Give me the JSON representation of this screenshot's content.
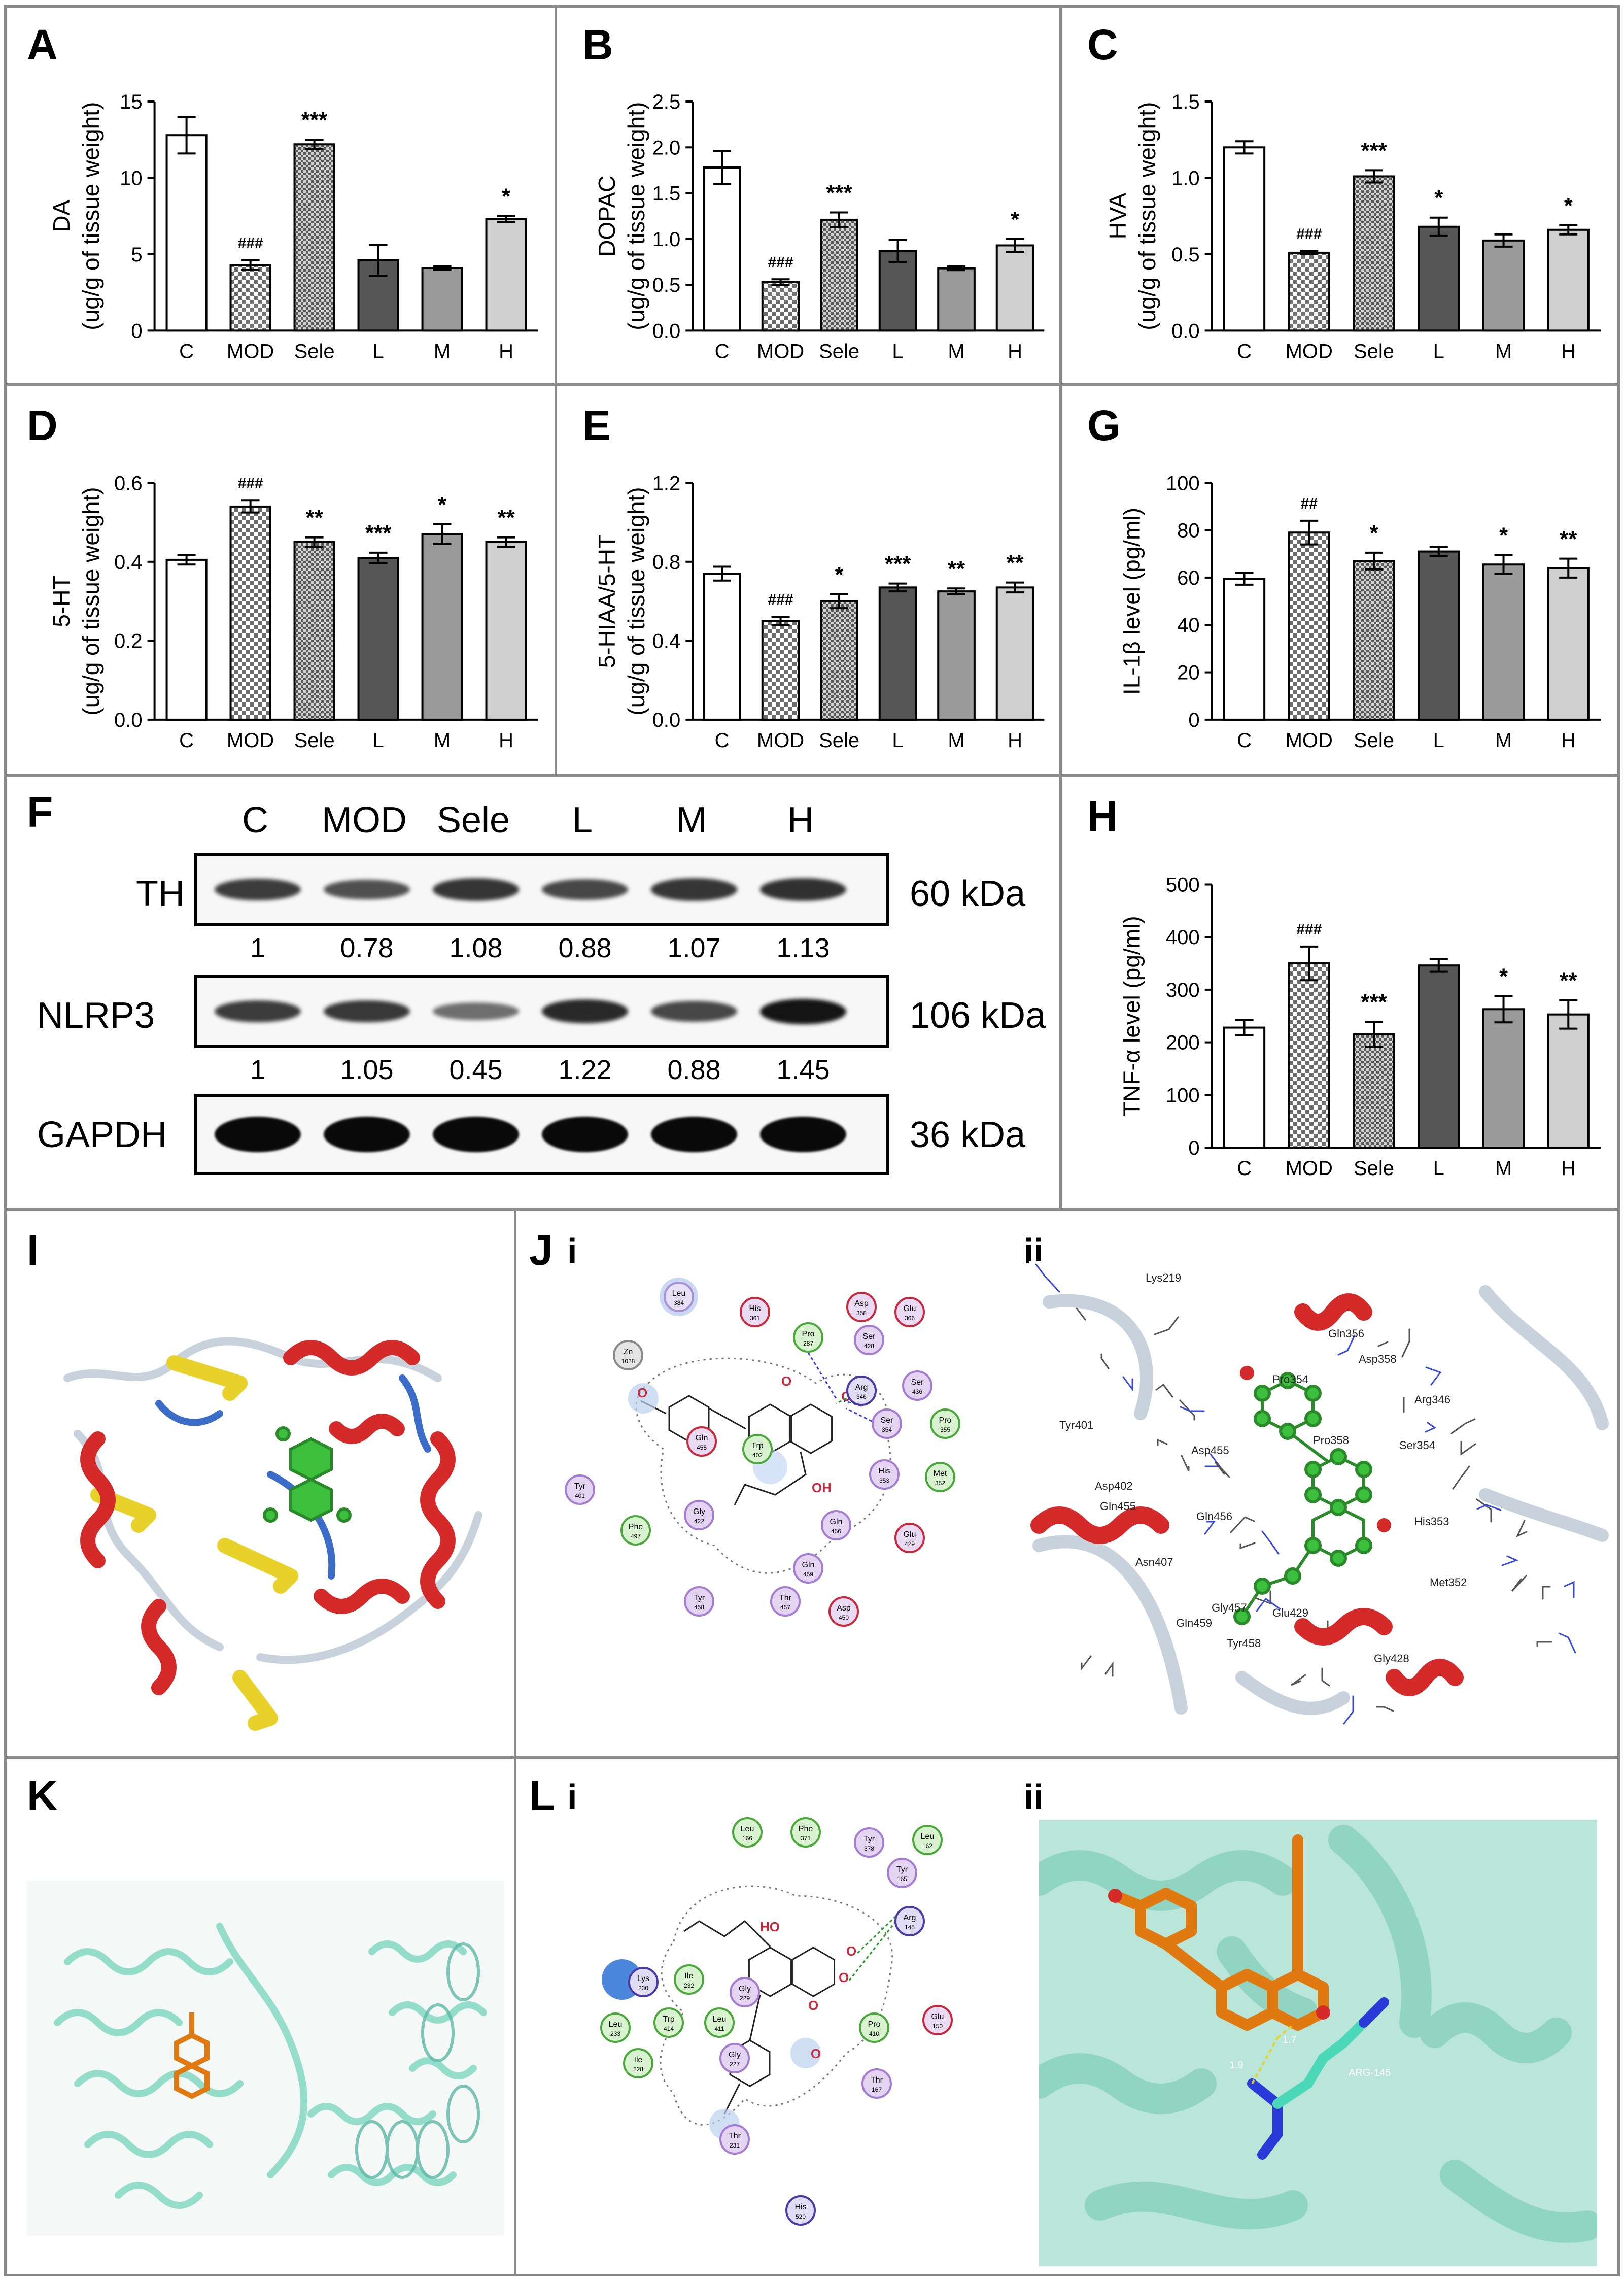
{
  "colors": {
    "C": "#ffffff",
    "MOD": "checker",
    "Sele": "checker-dense",
    "L": "#555555",
    "M": "#9a9a9a",
    "H": "#cfcfcf",
    "helix": "#d42a2a",
    "sheet": "#e8d22a",
    "coil": "#c8d2dc",
    "ligand_green": "#3cbf3c",
    "ligand_orange": "#e07a10",
    "cartoon_teal": "#8fdcc8"
  },
  "panels": {
    "A": "A",
    "B": "B",
    "C": "C",
    "D": "D",
    "E": "E",
    "G": "G",
    "F": "F",
    "H": "H",
    "I": "I",
    "J": "J",
    "K": "K",
    "L": "L",
    "J_i": "i",
    "J_ii": "ii",
    "L_i": "i",
    "L_ii": "ii"
  },
  "chart_data": [
    {
      "id": "A",
      "type": "bar",
      "categories": [
        "C",
        "MOD",
        "Sele",
        "L",
        "M",
        "H"
      ],
      "values": [
        12.8,
        4.3,
        12.2,
        4.6,
        4.1,
        7.3
      ],
      "errors": [
        1.2,
        0.3,
        0.3,
        1.0,
        0.1,
        0.2
      ],
      "annotations": [
        "",
        "###",
        "***",
        "",
        "",
        "*"
      ],
      "ylabel": [
        "DA",
        "(ug/g of tissue weight)"
      ],
      "ylim": [
        0,
        15
      ],
      "yticks": [
        "0",
        "5",
        "10",
        "15"
      ]
    },
    {
      "id": "B",
      "type": "bar",
      "categories": [
        "C",
        "MOD",
        "Sele",
        "L",
        "M",
        "H"
      ],
      "values": [
        1.78,
        0.53,
        1.21,
        0.87,
        0.68,
        0.93
      ],
      "errors": [
        0.18,
        0.03,
        0.08,
        0.12,
        0.02,
        0.07
      ],
      "annotations": [
        "",
        "###",
        "***",
        "",
        "",
        "*"
      ],
      "ylabel": [
        "DOPAC",
        "(ug/g of tissue weight)"
      ],
      "ylim": [
        0,
        2.5
      ],
      "yticks": [
        "0.0",
        "0.5",
        "1.0",
        "1.5",
        "2.0",
        "2.5"
      ]
    },
    {
      "id": "C",
      "type": "bar",
      "categories": [
        "C",
        "MOD",
        "Sele",
        "L",
        "M",
        "H"
      ],
      "values": [
        1.2,
        0.51,
        1.01,
        0.68,
        0.59,
        0.66
      ],
      "errors": [
        0.04,
        0.01,
        0.04,
        0.06,
        0.04,
        0.03
      ],
      "annotations": [
        "",
        "###",
        "***",
        "*",
        "",
        "*"
      ],
      "ylabel": [
        "HVA",
        "(ug/g of tissue weight)"
      ],
      "ylim": [
        0,
        1.5
      ],
      "yticks": [
        "0.0",
        "0.5",
        "1.0",
        "1.5"
      ]
    },
    {
      "id": "D",
      "type": "bar",
      "categories": [
        "C",
        "MOD",
        "Sele",
        "L",
        "M",
        "H"
      ],
      "values": [
        0.405,
        0.54,
        0.45,
        0.41,
        0.47,
        0.45
      ],
      "errors": [
        0.012,
        0.015,
        0.012,
        0.013,
        0.025,
        0.012
      ],
      "annotations": [
        "",
        "###",
        "**",
        "***",
        "*",
        "**"
      ],
      "ylabel": [
        "5-HT",
        "(ug/g of tissue weight)"
      ],
      "ylim": [
        0,
        0.6
      ],
      "yticks": [
        "0.0",
        "0.2",
        "0.4",
        "0.6"
      ]
    },
    {
      "id": "E",
      "type": "bar",
      "categories": [
        "C",
        "MOD",
        "Sele",
        "L",
        "M",
        "H"
      ],
      "values": [
        0.74,
        0.5,
        0.6,
        0.67,
        0.65,
        0.67
      ],
      "errors": [
        0.035,
        0.02,
        0.035,
        0.02,
        0.015,
        0.025
      ],
      "annotations": [
        "",
        "###",
        "*",
        "***",
        "**",
        "**"
      ],
      "ylabel": [
        "5-HIAA/5-HT",
        "(ug/g of tissue weight)"
      ],
      "ylim": [
        0,
        1.2
      ],
      "yticks": [
        "0.0",
        "0.4",
        "0.8",
        "1.2"
      ]
    },
    {
      "id": "G",
      "type": "bar",
      "categories": [
        "C",
        "MOD",
        "Sele",
        "L",
        "M",
        "H"
      ],
      "values": [
        59.5,
        79,
        67,
        71,
        65.5,
        64
      ],
      "errors": [
        2.5,
        5,
        3.5,
        2,
        4,
        4
      ],
      "annotations": [
        "",
        "##",
        "*",
        "",
        "*",
        "**"
      ],
      "ylabel": [
        "IL-1β level (pg/ml)"
      ],
      "ylim": [
        0,
        100
      ],
      "yticks": [
        "0",
        "20",
        "40",
        "60",
        "80",
        "100"
      ]
    },
    {
      "id": "H",
      "type": "bar",
      "categories": [
        "C",
        "MOD",
        "Sele",
        "L",
        "M",
        "H"
      ],
      "values": [
        228,
        350,
        215,
        346,
        263,
        253
      ],
      "errors": [
        14,
        32,
        24,
        12,
        25,
        27
      ],
      "annotations": [
        "",
        "###",
        "***",
        "",
        "*",
        "**"
      ],
      "ylabel": [
        "TNF-α level (pg/ml)"
      ],
      "ylim": [
        0,
        500
      ],
      "yticks": [
        "0",
        "100",
        "200",
        "300",
        "400",
        "500"
      ]
    }
  ],
  "western_blot": {
    "lanes": [
      "C",
      "MOD",
      "Sele",
      "L",
      "M",
      "H"
    ],
    "rows": [
      {
        "label": "TH",
        "kda": "60 kDa",
        "quant": [
          "1",
          "0.78",
          "1.08",
          "0.88",
          "1.07",
          "1.13"
        ]
      },
      {
        "label": "NLRP3",
        "kda": "106 kDa",
        "quant": [
          "1",
          "1.05",
          "0.45",
          "1.22",
          "0.88",
          "1.45"
        ]
      },
      {
        "label": "GAPDH",
        "kda": "36 kDa",
        "quant": []
      }
    ],
    "intensities": {
      "TH": [
        1,
        0.78,
        1.08,
        0.88,
        1.07,
        1.13
      ],
      "NLRP3": [
        1,
        1.05,
        0.45,
        1.22,
        0.88,
        1.45
      ],
      "GAPDH": [
        1,
        1,
        1,
        1,
        1,
        1
      ]
    }
  },
  "docking_J": {
    "residues": [
      {
        "text": "Leu\n384",
        "type": "hydrophobic"
      },
      {
        "text": "His\n361",
        "type": "polar-red"
      },
      {
        "text": "Pro\n287",
        "type": "green"
      },
      {
        "text": "Asp\n358",
        "type": "polar-red"
      },
      {
        "text": "Glu\n366",
        "type": "polar-red"
      },
      {
        "text": "Ser\n428",
        "type": "purple"
      },
      {
        "text": "Zn\n1028",
        "type": "gray"
      },
      {
        "text": "Arg\n346",
        "type": "blue"
      },
      {
        "text": "Ser\n436",
        "type": "purple"
      },
      {
        "text": "Ser\n354",
        "type": "purple"
      },
      {
        "text": "Pro\n355",
        "type": "green"
      },
      {
        "text": "Gln\n455",
        "type": "polar-red"
      },
      {
        "text": "Trp\n402",
        "type": "green"
      },
      {
        "text": "His\n353",
        "type": "purple"
      },
      {
        "text": "Met\n352",
        "type": "green"
      },
      {
        "text": "Tyr\n401",
        "type": "purple"
      },
      {
        "text": "Phe\n497",
        "type": "green"
      },
      {
        "text": "Gly\n422",
        "type": "purple"
      },
      {
        "text": "Gln\n456",
        "type": "purple"
      },
      {
        "text": "Glu\n429",
        "type": "polar-red"
      },
      {
        "text": "Gln\n459",
        "type": "purple"
      },
      {
        "text": "Tyr\n458",
        "type": "purple"
      },
      {
        "text": "Thr\n457",
        "type": "purple"
      },
      {
        "text": "Asp\n450",
        "type": "polar-red"
      }
    ],
    "ligand_labels": [
      "O",
      "O",
      "O",
      "OH"
    ],
    "residue3d": [
      "Lys219",
      "Gln356",
      "Asp358",
      "Pro354",
      "Arg346",
      "Tyr401",
      "Asp455",
      "Pro358",
      "Ser354",
      "Asp402",
      "Gln455",
      "Gln456",
      "His353",
      "Asn407",
      "Gln459",
      "Gly457",
      "Glu429",
      "Tyr458",
      "Met352",
      "Gly428"
    ]
  },
  "docking_L": {
    "residues": [
      {
        "text": "Leu\n166",
        "type": "green"
      },
      {
        "text": "Phe\n371",
        "type": "green"
      },
      {
        "text": "Tyr\n378",
        "type": "purple"
      },
      {
        "text": "Leu\n162",
        "type": "green"
      },
      {
        "text": "Tyr\n165",
        "type": "purple"
      },
      {
        "text": "Arg\n145",
        "type": "blue"
      },
      {
        "text": "Lys\n230",
        "type": "blue"
      },
      {
        "text": "Ile\n232",
        "type": "green"
      },
      {
        "text": "Gly\n229",
        "type": "purple"
      },
      {
        "text": "Leu\n233",
        "type": "green"
      },
      {
        "text": "Trp\n414",
        "type": "green"
      },
      {
        "text": "Leu\n411",
        "type": "green"
      },
      {
        "text": "Pro\n410",
        "type": "green"
      },
      {
        "text": "Glu\n150",
        "type": "polar-red"
      },
      {
        "text": "Ile\n228",
        "type": "green"
      },
      {
        "text": "Gly\n227",
        "type": "purple"
      },
      {
        "text": "Thr\n167",
        "type": "purple"
      },
      {
        "text": "Thr\n231",
        "type": "purple"
      },
      {
        "text": "His\n520",
        "type": "blue"
      }
    ],
    "ligand_labels": [
      "HO",
      "O",
      "O",
      "O",
      "O"
    ],
    "residue3d": [
      "ARG-145",
      "1.9",
      "1.7"
    ]
  }
}
